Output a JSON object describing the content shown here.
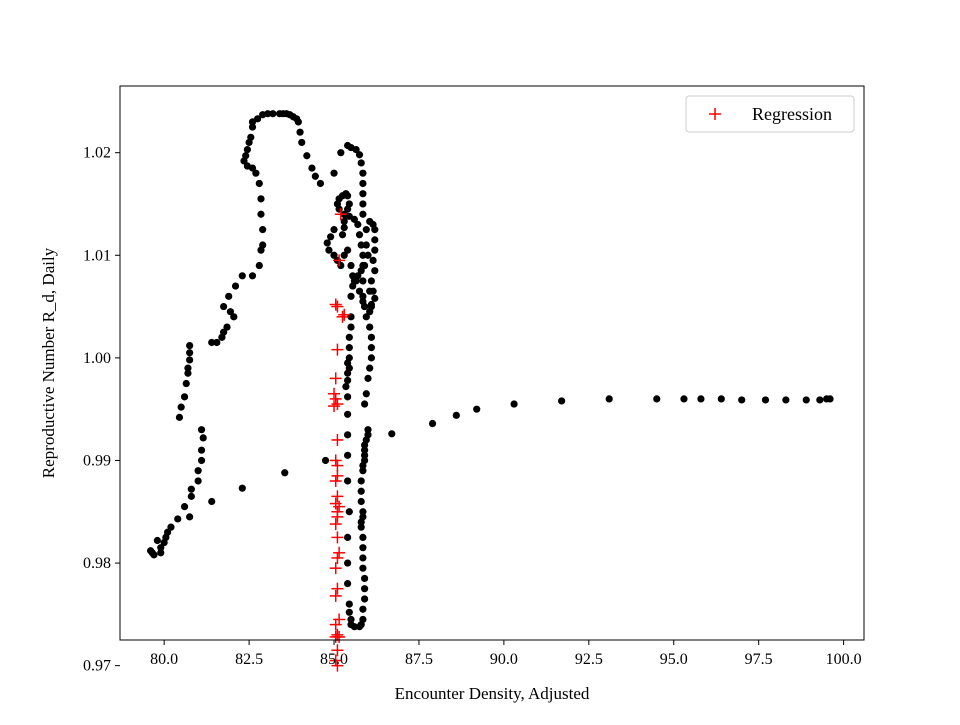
{
  "colors": {
    "scatter": "#000000",
    "regression": "#ff0000",
    "axes": "#000000",
    "legend_border": "#cccccc",
    "background": "#ffffff"
  },
  "chart_data": {
    "type": "scatter",
    "title": "",
    "xlabel": "Encounter Density, Adjusted",
    "ylabel": "Reproductive Number R_d, Daily",
    "xlim": [
      78.7,
      100.6
    ],
    "ylim": [
      0.9725,
      1.0265
    ],
    "x_ticks": [
      80.0,
      82.5,
      85.0,
      87.5,
      90.0,
      92.5,
      95.0,
      97.5,
      100.0
    ],
    "x_tick_labels": [
      "80.0",
      "82.5",
      "85.0",
      "87.5",
      "90.0",
      "92.5",
      "95.0",
      "97.5",
      "100.0"
    ],
    "y_ticks": [
      0.97,
      0.98,
      0.99,
      1.0,
      1.01,
      1.02
    ],
    "y_tick_labels": [
      "0.97",
      "0.98",
      "0.99",
      "1.00",
      "1.01",
      "1.02"
    ],
    "grid": false,
    "legend": {
      "position": "top-right",
      "entries": [
        "Regression"
      ]
    },
    "series": [
      {
        "marker": "circle",
        "color": "#000000",
        "points": [
          [
            99.6,
            0.996
          ],
          [
            99.5,
            0.996
          ],
          [
            99.3,
            0.9959
          ],
          [
            98.9,
            0.9959
          ],
          [
            98.3,
            0.9959
          ],
          [
            97.7,
            0.9959
          ],
          [
            97.0,
            0.9959
          ],
          [
            96.4,
            0.996
          ],
          [
            95.8,
            0.996
          ],
          [
            95.3,
            0.996
          ],
          [
            94.5,
            0.996
          ],
          [
            93.1,
            0.996
          ],
          [
            91.7,
            0.9958
          ],
          [
            90.3,
            0.9955
          ],
          [
            89.2,
            0.995
          ],
          [
            88.6,
            0.9944
          ],
          [
            87.9,
            0.9936
          ],
          [
            86.7,
            0.9926
          ],
          [
            86.0,
            0.993
          ],
          [
            86.0,
            0.9925
          ],
          [
            85.95,
            0.992
          ],
          [
            85.9,
            0.9915
          ],
          [
            85.9,
            0.991
          ],
          [
            85.9,
            0.9905
          ],
          [
            85.9,
            0.99
          ],
          [
            85.85,
            0.9895
          ],
          [
            85.85,
            0.989
          ],
          [
            85.8,
            0.988
          ],
          [
            85.8,
            0.987
          ],
          [
            85.8,
            0.986
          ],
          [
            85.85,
            0.985
          ],
          [
            85.85,
            0.9845
          ],
          [
            85.8,
            0.984
          ],
          [
            85.8,
            0.9835
          ],
          [
            85.85,
            0.9825
          ],
          [
            85.85,
            0.9815
          ],
          [
            85.85,
            0.9805
          ],
          [
            85.85,
            0.9795
          ],
          [
            85.9,
            0.9785
          ],
          [
            85.9,
            0.9775
          ],
          [
            85.9,
            0.9765
          ],
          [
            85.85,
            0.9755
          ],
          [
            85.85,
            0.9745
          ],
          [
            85.8,
            0.974
          ],
          [
            85.75,
            0.9738
          ],
          [
            85.6,
            0.9738
          ],
          [
            85.5,
            0.974
          ],
          [
            85.5,
            0.9745
          ],
          [
            85.45,
            0.9752
          ],
          [
            85.45,
            0.976
          ],
          [
            85.4,
            0.978
          ],
          [
            85.4,
            0.98
          ],
          [
            85.4,
            0.9825
          ],
          [
            85.45,
            0.985
          ],
          [
            85.4,
            0.988
          ],
          [
            85.4,
            0.9905
          ],
          [
            85.4,
            0.9925
          ],
          [
            85.4,
            0.9945
          ],
          [
            85.4,
            0.9962
          ],
          [
            85.35,
            0.9972
          ],
          [
            85.4,
            0.9978
          ],
          [
            85.4,
            0.9985
          ],
          [
            85.45,
            0.999
          ],
          [
            85.4,
            0.9995
          ],
          [
            85.45,
            1.0
          ],
          [
            85.45,
            1.001
          ],
          [
            85.45,
            1.002
          ],
          [
            85.5,
            1.003
          ],
          [
            85.5,
            1.004
          ],
          [
            85.5,
            1.006
          ],
          [
            85.55,
            1.007
          ],
          [
            85.6,
            1.0075
          ],
          [
            85.7,
            1.008
          ],
          [
            85.8,
            1.0085
          ],
          [
            85.85,
            1.009
          ],
          [
            85.85,
            1.01
          ],
          [
            85.8,
            1.011
          ],
          [
            85.75,
            1.012
          ],
          [
            85.7,
            1.013
          ],
          [
            85.6,
            1.0135
          ],
          [
            85.45,
            1.0138
          ],
          [
            85.3,
            1.014
          ],
          [
            85.15,
            1.0145
          ],
          [
            85.1,
            1.015
          ],
          [
            85.15,
            1.0155
          ],
          [
            85.25,
            1.0158
          ],
          [
            85.35,
            1.016
          ],
          [
            85.4,
            1.0158
          ],
          [
            85.45,
            1.015
          ],
          [
            85.4,
            1.0145
          ],
          [
            85.35,
            1.0138
          ],
          [
            85.3,
            1.0133
          ],
          [
            85.3,
            1.0127
          ],
          [
            85.25,
            1.012
          ],
          [
            85.0,
            1.0125
          ],
          [
            84.9,
            1.0118
          ],
          [
            84.8,
            1.0112
          ],
          [
            84.85,
            1.0105
          ],
          [
            85.0,
            1.01
          ],
          [
            85.1,
            1.0095
          ],
          [
            85.2,
            1.009
          ],
          [
            85.3,
            1.01
          ],
          [
            85.4,
            1.0105
          ],
          [
            85.5,
            1.009
          ],
          [
            85.55,
            1.008
          ],
          [
            85.65,
            1.0075
          ],
          [
            85.75,
            1.0065
          ],
          [
            85.85,
            1.0055
          ],
          [
            85.9,
            1.005
          ],
          [
            86.05,
            1.0045
          ],
          [
            86.1,
            1.0052
          ],
          [
            86.2,
            1.0058
          ],
          [
            86.15,
            1.0065
          ],
          [
            86.1,
            1.0075
          ],
          [
            86.2,
            1.0085
          ],
          [
            86.15,
            1.0095
          ],
          [
            86.2,
            1.0105
          ],
          [
            86.2,
            1.0115
          ],
          [
            86.2,
            1.0125
          ],
          [
            86.15,
            1.013
          ],
          [
            86.05,
            1.0133
          ],
          [
            85.95,
            1.0125
          ],
          [
            85.95,
            1.011
          ],
          [
            86.0,
            1.01
          ],
          [
            85.9,
            1.009
          ],
          [
            85.85,
            1.0075
          ],
          [
            85.85,
            1.006
          ],
          [
            85.9,
            1.005
          ],
          [
            85.95,
            1.004
          ],
          [
            86.05,
            1.003
          ],
          [
            86.1,
            1.002
          ],
          [
            86.1,
            1.001
          ],
          [
            86.1,
            1.0
          ],
          [
            86.05,
            0.999
          ],
          [
            86.0,
            0.998
          ],
          [
            85.95,
            0.9965
          ],
          [
            85.9,
            0.9955
          ],
          [
            86.05,
            1.0065
          ],
          [
            86.1,
            1.005
          ],
          [
            85.85,
            1.014
          ],
          [
            85.85,
            1.015
          ],
          [
            85.85,
            1.016
          ],
          [
            85.85,
            1.017
          ],
          [
            85.85,
            1.018
          ],
          [
            85.8,
            1.019
          ],
          [
            85.75,
            1.0198
          ],
          [
            85.65,
            1.0203
          ],
          [
            85.5,
            1.0205
          ],
          [
            85.4,
            1.0207
          ],
          [
            85.2,
            1.02
          ],
          [
            85.0,
            1.018
          ],
          [
            84.6,
            1.017
          ],
          [
            84.45,
            1.0177
          ],
          [
            84.35,
            1.0185
          ],
          [
            84.2,
            1.0197
          ],
          [
            84.05,
            1.021
          ],
          [
            84.0,
            1.022
          ],
          [
            83.95,
            1.023
          ],
          [
            83.9,
            1.0233
          ],
          [
            83.8,
            1.0235
          ],
          [
            83.7,
            1.0237
          ],
          [
            83.6,
            1.0238
          ],
          [
            83.5,
            1.0238
          ],
          [
            83.4,
            1.0238
          ],
          [
            83.2,
            1.0238
          ],
          [
            83.05,
            1.0238
          ],
          [
            82.9,
            1.0237
          ],
          [
            82.75,
            1.0233
          ],
          [
            82.6,
            1.023
          ],
          [
            82.6,
            1.0225
          ],
          [
            82.55,
            1.0215
          ],
          [
            82.5,
            1.021
          ],
          [
            82.45,
            1.0203
          ],
          [
            82.4,
            1.0197
          ],
          [
            82.35,
            1.0192
          ],
          [
            82.45,
            1.0187
          ],
          [
            82.6,
            1.0185
          ],
          [
            82.7,
            1.018
          ],
          [
            82.8,
            1.017
          ],
          [
            82.85,
            1.0155
          ],
          [
            82.85,
            1.014
          ],
          [
            82.9,
            1.0125
          ],
          [
            82.9,
            1.011
          ],
          [
            82.85,
            1.0105
          ],
          [
            82.8,
            1.009
          ],
          [
            82.6,
            1.008
          ],
          [
            82.3,
            1.008
          ],
          [
            82.1,
            1.007
          ],
          [
            81.9,
            1.006
          ],
          [
            81.75,
            1.005
          ],
          [
            81.95,
            1.0045
          ],
          [
            82.05,
            1.004
          ],
          [
            81.85,
            1.003
          ],
          [
            81.75,
            1.0025
          ],
          [
            81.7,
            1.002
          ],
          [
            81.55,
            1.0015
          ],
          [
            81.4,
            1.0015
          ],
          [
            80.75,
            1.0012
          ],
          [
            80.75,
            1.0005
          ],
          [
            80.75,
            0.9998
          ],
          [
            80.7,
            0.999
          ],
          [
            80.7,
            0.9985
          ],
          [
            80.65,
            0.9975
          ],
          [
            80.6,
            0.9962
          ],
          [
            80.5,
            0.9952
          ],
          [
            80.45,
            0.9942
          ],
          [
            81.1,
            0.993
          ],
          [
            81.15,
            0.9922
          ],
          [
            81.1,
            0.991
          ],
          [
            81.1,
            0.99
          ],
          [
            81.0,
            0.989
          ],
          [
            81.0,
            0.988
          ],
          [
            80.8,
            0.9872
          ],
          [
            80.8,
            0.9865
          ],
          [
            80.6,
            0.9855
          ],
          [
            80.4,
            0.9843
          ],
          [
            80.2,
            0.9835
          ],
          [
            80.1,
            0.983
          ],
          [
            80.05,
            0.9825
          ],
          [
            80.0,
            0.982
          ],
          [
            79.9,
            0.9815
          ],
          [
            79.6,
            0.9812
          ],
          [
            79.65,
            0.981
          ],
          [
            79.7,
            0.9808
          ],
          [
            79.8,
            0.9822
          ],
          [
            79.9,
            0.981
          ],
          [
            80.75,
            0.9845
          ],
          [
            81.4,
            0.986
          ],
          [
            82.3,
            0.9873
          ],
          [
            83.55,
            0.9888
          ],
          [
            84.75,
            0.99
          ]
        ]
      },
      {
        "name": "Regression",
        "marker": "plus",
        "color": "#ff0000",
        "points": [
          [
            85.2,
            1.014
          ],
          [
            85.15,
            1.0095
          ],
          [
            85.05,
            1.0052
          ],
          [
            85.1,
            1.005
          ],
          [
            85.3,
            1.0042
          ],
          [
            85.25,
            1.004
          ],
          [
            85.1,
            1.0008
          ],
          [
            85.05,
            0.998
          ],
          [
            85.0,
            0.9965
          ],
          [
            85.05,
            0.996
          ],
          [
            85.1,
            0.9955
          ],
          [
            85.0,
            0.9953
          ],
          [
            85.1,
            0.992
          ],
          [
            85.05,
            0.99
          ],
          [
            85.1,
            0.9895
          ],
          [
            85.1,
            0.9885
          ],
          [
            85.05,
            0.988
          ],
          [
            85.1,
            0.9865
          ],
          [
            85.05,
            0.9858
          ],
          [
            85.15,
            0.9855
          ],
          [
            85.1,
            0.985
          ],
          [
            85.1,
            0.9845
          ],
          [
            85.05,
            0.9838
          ],
          [
            85.1,
            0.9825
          ],
          [
            85.15,
            0.981
          ],
          [
            85.1,
            0.9805
          ],
          [
            85.05,
            0.9795
          ],
          [
            85.1,
            0.9775
          ],
          [
            85.05,
            0.9768
          ],
          [
            85.15,
            0.9745
          ],
          [
            85.05,
            0.974
          ],
          [
            85.1,
            0.973
          ],
          [
            85.05,
            0.9728
          ],
          [
            85.15,
            0.9728
          ],
          [
            85.1,
            0.9715
          ],
          [
            85.05,
            0.9705
          ],
          [
            85.1,
            0.97
          ]
        ]
      }
    ]
  }
}
